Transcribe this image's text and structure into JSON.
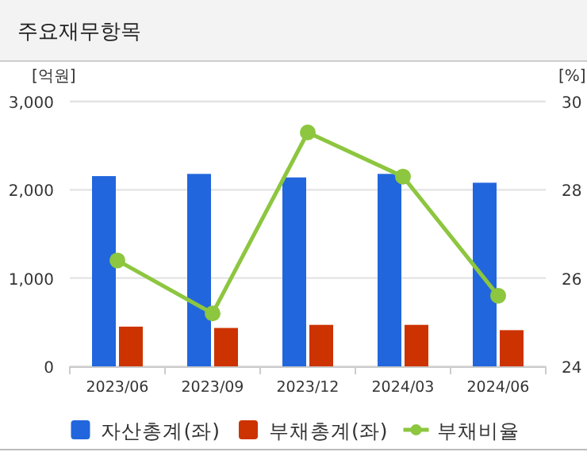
{
  "chart_data": {
    "type": "bar",
    "title": "주요재무항목",
    "ylabel": "[억원]",
    "y2label": "[%]",
    "categories": [
      "2023/06",
      "2023/09",
      "2023/12",
      "2024/03",
      "2024/06"
    ],
    "series": [
      {
        "name": "자산총계(좌)",
        "color": "#2266dd",
        "values": [
          2155,
          2180,
          2140,
          2180,
          2080
        ]
      },
      {
        "name": "부채총계(좌)",
        "color": "#cc3300",
        "values": [
          450,
          435,
          470,
          470,
          410
        ]
      },
      {
        "name": "부채비율",
        "type": "line",
        "axis": "y2",
        "color": "#8dc63f",
        "values": [
          26.4,
          25.2,
          29.3,
          28.3,
          25.6
        ]
      }
    ],
    "ylim": [
      0,
      3000
    ],
    "yticks": [
      0,
      {
        "value": 1000,
        "label": "1,000"
      },
      {
        "value": 2000,
        "label": "2,000"
      },
      {
        "value": 3000,
        "label": "3,000"
      }
    ],
    "y2lim": [
      24,
      30
    ],
    "y2ticks": [
      24,
      26,
      28,
      30
    ],
    "grid": "y",
    "legend": "bottom",
    "marker": "circle"
  }
}
